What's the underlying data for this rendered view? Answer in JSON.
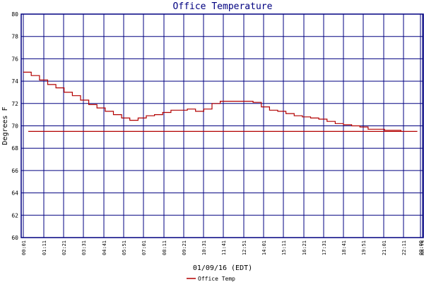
{
  "chart_data": {
    "type": "line",
    "title": "Office Temperature",
    "xlabel": "01/09/16 (EDT)",
    "ylabel": "Degrees F",
    "ylim": [
      60,
      80
    ],
    "yticks": [
      "60",
      "62",
      "64",
      "66",
      "68",
      "70",
      "72",
      "74",
      "76",
      "78",
      "80"
    ],
    "xticks": [
      "00:01",
      "01:11",
      "02:21",
      "03:31",
      "04:41",
      "05:51",
      "07:01",
      "08:11",
      "09:21",
      "10:31",
      "11:41",
      "12:51",
      "14:01",
      "15:11",
      "16:21",
      "17:31",
      "18:41",
      "19:51",
      "21:01",
      "22:11",
      "00:00",
      "00:19"
    ],
    "grid": true,
    "legend_position": "bottom-left",
    "colors": {
      "line": "#b30000",
      "grid": "#000080",
      "frame": "#000080",
      "title": "#000080"
    },
    "series": [
      {
        "name": "Office Temp",
        "x": [
          "00:01",
          "00:30",
          "01:00",
          "01:30",
          "02:00",
          "02:30",
          "03:00",
          "03:30",
          "04:00",
          "04:30",
          "05:00",
          "05:30",
          "06:00",
          "06:30",
          "07:00",
          "07:30",
          "08:00",
          "08:30",
          "09:00",
          "09:30",
          "10:00",
          "10:30",
          "11:00",
          "11:30",
          "12:00",
          "12:30",
          "13:00",
          "13:30",
          "14:00",
          "14:30",
          "15:00",
          "15:30",
          "16:00",
          "16:30",
          "17:00",
          "17:30",
          "18:00",
          "18:30",
          "19:00",
          "19:30",
          "20:00",
          "20:30",
          "21:00",
          "21:30",
          "22:00",
          "22:30",
          "23:00",
          "23:30",
          "00:00",
          "00:19"
        ],
        "values": [
          74.8,
          74.5,
          74.1,
          73.7,
          73.4,
          73.0,
          72.7,
          72.3,
          71.9,
          71.6,
          71.3,
          71.0,
          70.7,
          70.5,
          70.7,
          70.9,
          71.0,
          71.2,
          71.4,
          71.4,
          71.5,
          71.3,
          71.5,
          72.0,
          72.2,
          72.2,
          72.2,
          72.2,
          72.1,
          71.7,
          71.4,
          71.3,
          71.1,
          70.9,
          70.8,
          70.7,
          70.6,
          70.4,
          70.2,
          70.1,
          70.0,
          69.9,
          69.7,
          69.7,
          69.6,
          69.6,
          69.5,
          69.5,
          69.5,
          69.5
        ]
      }
    ]
  }
}
